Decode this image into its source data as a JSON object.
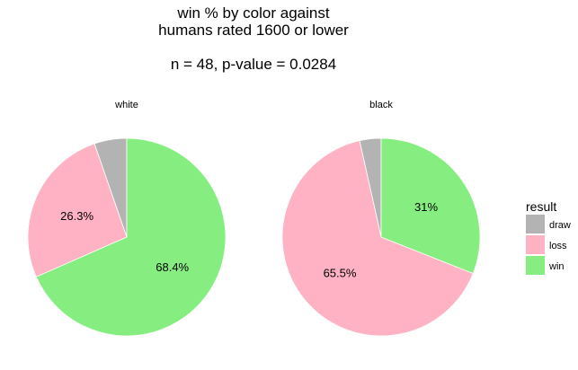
{
  "chart_data": {
    "type": "pie",
    "title_lines": [
      "win % by color against",
      "humans rated 1600 or lower",
      "",
      "n = 48,    p-value = 0.0284"
    ],
    "categories": [
      "draw",
      "loss",
      "win"
    ],
    "colors": {
      "draw": "#b3b3b3",
      "loss": "#ffb2c3",
      "win": "#86ee80"
    },
    "legend": {
      "title": "result",
      "position": "right",
      "items": [
        "draw",
        "loss",
        "win"
      ]
    },
    "facets": [
      {
        "label": "white",
        "values": {
          "draw": 5.3,
          "loss": 26.3,
          "win": 68.4
        },
        "labels": {
          "draw": "",
          "loss": "26.3%",
          "win": "68.4%"
        }
      },
      {
        "label": "black",
        "values": {
          "draw": 3.5,
          "loss": 65.5,
          "win": 31.0
        },
        "labels": {
          "draw": "",
          "loss": "65.5%",
          "win": "31%"
        }
      }
    ]
  }
}
